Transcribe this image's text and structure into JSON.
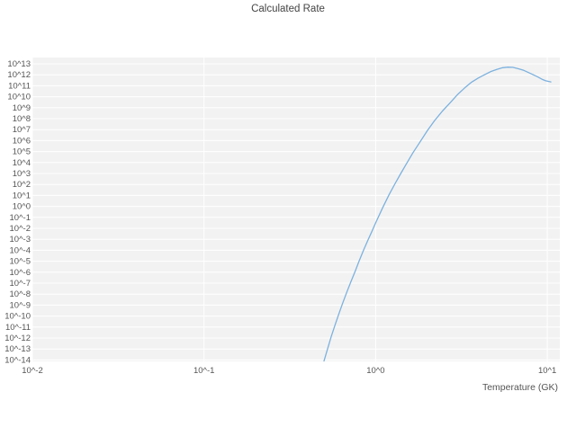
{
  "title": "Calculated Rate",
  "chart_data": {
    "type": "line",
    "title": "Calculated Rate",
    "xlabel": "Temperature (GK)",
    "ylabel": "",
    "x_scale": "log",
    "y_scale": "log",
    "grid": true,
    "legend": "none",
    "x_ticks": [
      "10^-2",
      "10^-1",
      "10^0",
      "10^1"
    ],
    "y_ticks": [
      "10^13",
      "10^12",
      "10^11",
      "10^10",
      "10^9",
      "10^8",
      "10^7",
      "10^6",
      "10^5",
      "10^4",
      "10^3",
      "10^2",
      "10^1",
      "10^0",
      "10^-1",
      "10^-2",
      "10^-3",
      "10^-4",
      "10^-5",
      "10^-6",
      "10^-7",
      "10^-8",
      "10^-9",
      "10^-10",
      "10^-11",
      "10^-12",
      "10^-13",
      "10^-14"
    ],
    "xlim_log": [
      -2,
      1.073
    ],
    "ylim_log": [
      -14.13,
      13.574
    ],
    "line_color": "#7cb1de",
    "plot_background_color": "#f2f2f2",
    "grid_color": "#ffffff",
    "text_color": "#555555",
    "series": [
      {
        "name": "Calculated Rate",
        "points_T_GK_vs_log10_rate": [
          [
            0.5,
            -14.1
          ],
          [
            0.52,
            -13.2
          ],
          [
            0.55,
            -11.9
          ],
          [
            0.58,
            -10.8
          ],
          [
            0.61,
            -9.8
          ],
          [
            0.64,
            -8.9
          ],
          [
            0.68,
            -7.8
          ],
          [
            0.72,
            -6.8
          ],
          [
            0.76,
            -5.9
          ],
          [
            0.8,
            -5.0
          ],
          [
            0.85,
            -4.0
          ],
          [
            0.9,
            -3.1
          ],
          [
            0.95,
            -2.3
          ],
          [
            1.0,
            -1.5
          ],
          [
            1.1,
            -0.1
          ],
          [
            1.2,
            1.1
          ],
          [
            1.3,
            2.1
          ],
          [
            1.4,
            3.0
          ],
          [
            1.5,
            3.8
          ],
          [
            1.65,
            4.9
          ],
          [
            1.8,
            5.8
          ],
          [
            2.0,
            6.9
          ],
          [
            2.2,
            7.8
          ],
          [
            2.45,
            8.7
          ],
          [
            2.7,
            9.4
          ],
          [
            3.0,
            10.2
          ],
          [
            3.3,
            10.8
          ],
          [
            3.6,
            11.3
          ],
          [
            3.95,
            11.7
          ],
          [
            4.3,
            12.0
          ],
          [
            4.7,
            12.3
          ],
          [
            5.1,
            12.5
          ],
          [
            5.5,
            12.65
          ],
          [
            5.9,
            12.7
          ],
          [
            6.3,
            12.68
          ],
          [
            6.8,
            12.55
          ],
          [
            7.3,
            12.4
          ],
          [
            7.8,
            12.2
          ],
          [
            8.3,
            12.0
          ],
          [
            8.8,
            11.8
          ],
          [
            9.3,
            11.6
          ],
          [
            9.8,
            11.45
          ],
          [
            10.5,
            11.35
          ]
        ]
      }
    ]
  }
}
